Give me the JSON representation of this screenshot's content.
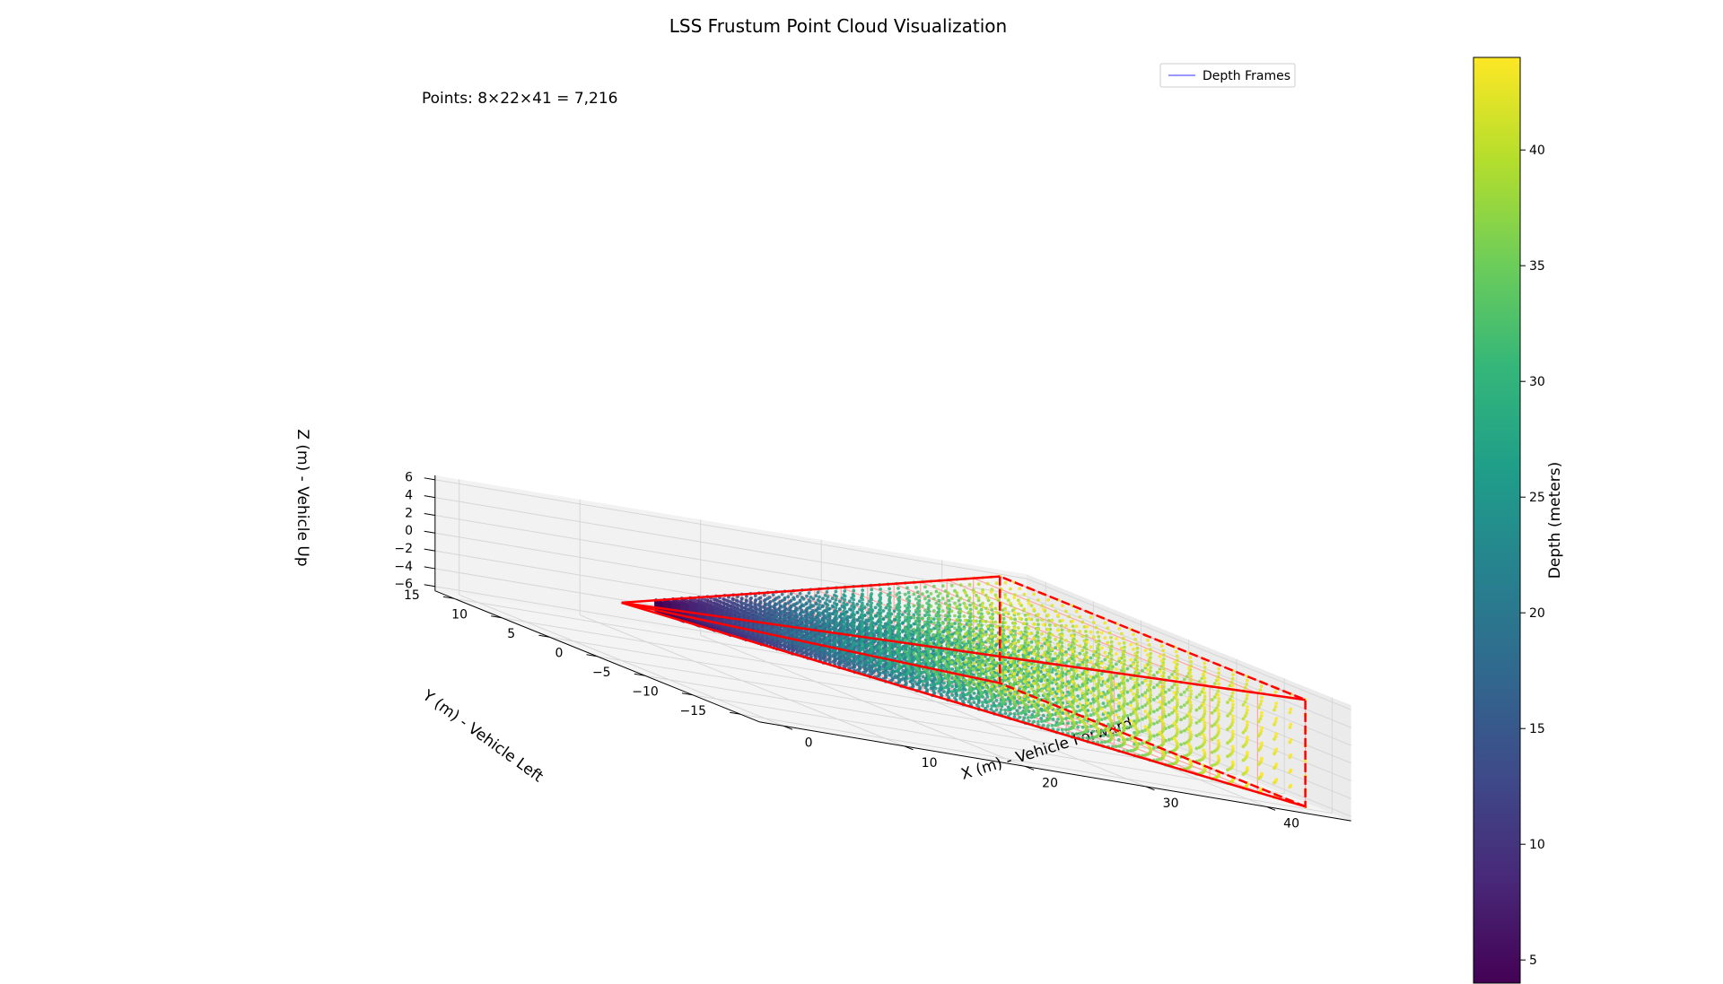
{
  "chart_data": {
    "type": "scatter",
    "projection": "3d",
    "title": "LSS Frustum Point Cloud Visualization",
    "annotation": "Points: 8×22×41 = 7,216",
    "xlabel": "X (m) - Vehicle Forward",
    "ylabel": "Y (m) - Vehicle Left",
    "zlabel": "Z (m) - Vehicle Up",
    "xlim": [
      -2,
      47
    ],
    "ylim": [
      -17,
      17
    ],
    "zlim": [
      -6.5,
      6.5
    ],
    "xticks": [
      "0",
      "10",
      "20",
      "30",
      "40"
    ],
    "yticks": [
      "−15",
      "−10",
      "−5",
      "0",
      "5",
      "10",
      "15"
    ],
    "zticks": [
      "−6",
      "−4",
      "−2",
      "0",
      "2",
      "4",
      "6"
    ],
    "grid": true,
    "legend": {
      "position": "top-right",
      "entries": [
        {
          "name": "Depth Frames",
          "color": "#7777ff"
        }
      ]
    },
    "colorbar": {
      "label": "Depth (meters)",
      "range": [
        4,
        44
      ],
      "ticks": [
        "5",
        "10",
        "15",
        "20",
        "25",
        "30",
        "35",
        "40"
      ],
      "colormap": "viridis"
    },
    "frustum": {
      "grid_shape": {
        "depth_bins": 41,
        "width_bins": 22,
        "height_bins": 8
      },
      "origin": [
        0,
        0,
        0
      ],
      "depth_range": [
        4,
        44
      ],
      "far_plane_y": [
        -16,
        16
      ],
      "far_plane_z": [
        -6,
        6
      ],
      "edge_color": "#ff0000",
      "frame_color": "#ffa099"
    }
  }
}
